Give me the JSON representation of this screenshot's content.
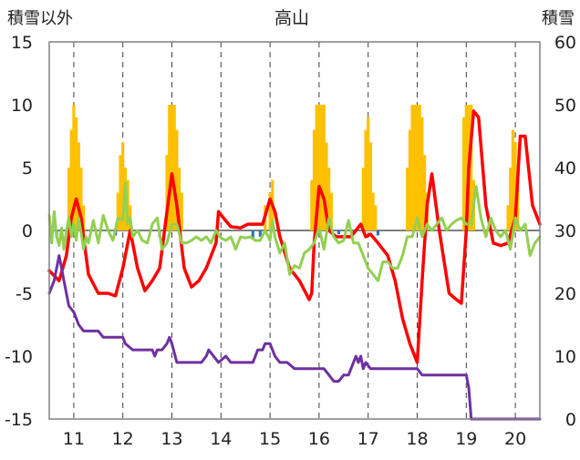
{
  "chart_data": {
    "type": "bar+line",
    "title": "高山",
    "left_axis_label": "積雪以外",
    "right_axis_label": "積雪",
    "left_ylim": [
      -15,
      15
    ],
    "left_ticks": [
      "15",
      "10",
      "5",
      "0",
      "-5",
      "-10",
      "-15"
    ],
    "right_ylim": [
      0,
      60
    ],
    "right_ticks": [
      "60",
      "50",
      "40",
      "30",
      "20",
      "10",
      "0"
    ],
    "xlim": [
      10.5,
      20.5
    ],
    "x_ticks": [
      "11",
      "12",
      "13",
      "14",
      "15",
      "16",
      "17",
      "18",
      "19",
      "20"
    ],
    "grid": "vertical dashed at day boundaries",
    "colors": {
      "snowfall_bars": "#FFC000",
      "precip_bars": "#2E75B6",
      "temperature": "#FF0000",
      "other_green": "#92D050",
      "snow_depth": "#7030A0",
      "zero_line": "#7F7F7F",
      "frame": "#808080",
      "grid": "#404040"
    },
    "series": [
      {
        "kind": "bar",
        "axis": "left",
        "color": "#FFC000",
        "x": [
          10.9,
          10.95,
          11.0,
          11.05,
          11.1,
          11.15,
          11.2,
          11.9,
          11.95,
          12.0,
          12.05,
          12.1,
          12.15,
          12.9,
          12.95,
          13.0,
          13.05,
          13.1,
          13.15,
          13.2,
          14.9,
          15.0,
          15.05,
          15.85,
          15.9,
          15.95,
          16.0,
          16.05,
          16.1,
          16.15,
          16.2,
          16.25,
          16.9,
          16.95,
          17.0,
          17.05,
          17.1,
          17.15,
          17.8,
          17.85,
          17.9,
          17.95,
          18.0,
          18.05,
          18.1,
          18.15,
          18.2,
          18.95,
          19.0,
          19.05,
          19.1,
          19.15,
          19.85,
          19.9,
          19.95,
          20.0,
          20.05
        ],
        "values": [
          5,
          8,
          10,
          9,
          7,
          5,
          2,
          3,
          6,
          7,
          5,
          4,
          2,
          6,
          10,
          10,
          10,
          8,
          5,
          3,
          2,
          3,
          4,
          4,
          8,
          10,
          10,
          10,
          10,
          7,
          5,
          3,
          5,
          8,
          9,
          7,
          3,
          2,
          5,
          8,
          10,
          10,
          10,
          10,
          9,
          6,
          3,
          9,
          10,
          10,
          10,
          4,
          2,
          5,
          8,
          7,
          4
        ]
      },
      {
        "kind": "bar",
        "axis": "left",
        "color": "#2E75B6",
        "x": [
          10.65,
          10.75,
          11.85,
          12.75,
          14.65,
          14.8,
          16.4,
          17.2
        ],
        "values": [
          -0.5,
          -0.6,
          -0.4,
          -0.5,
          -0.7,
          -0.5,
          -0.3,
          -0.4
        ]
      },
      {
        "kind": "line",
        "axis": "left",
        "color": "#FF0000",
        "x": [
          10.5,
          10.7,
          10.85,
          10.95,
          11.05,
          11.15,
          11.3,
          11.5,
          11.7,
          11.85,
          12.0,
          12.15,
          12.3,
          12.45,
          12.6,
          12.75,
          12.9,
          13.0,
          13.1,
          13.25,
          13.4,
          13.55,
          13.7,
          13.9,
          13.95,
          14.05,
          14.2,
          14.4,
          14.55,
          14.7,
          14.85,
          15.0,
          15.1,
          15.2,
          15.4,
          15.6,
          15.8,
          15.85,
          15.9,
          16.0,
          16.1,
          16.2,
          16.35,
          16.5,
          16.65,
          16.85,
          16.95,
          17.05,
          17.2,
          17.4,
          17.55,
          17.7,
          17.85,
          18.0,
          18.1,
          18.2,
          18.3,
          18.45,
          18.65,
          18.8,
          18.9,
          19.0,
          19.05,
          19.15,
          19.25,
          19.4,
          19.55,
          19.7,
          19.85,
          20.0,
          20.1,
          20.2,
          20.35,
          20.5
        ],
        "values": [
          -3.2,
          -4.0,
          -2.0,
          1.0,
          2.5,
          1.0,
          -3.5,
          -5.0,
          -5.0,
          -5.2,
          -3.0,
          0.0,
          -3.0,
          -4.8,
          -4.0,
          -3.0,
          1.5,
          4.5,
          2.0,
          -3.0,
          -4.5,
          -4.0,
          -3.0,
          -1.0,
          1.5,
          1.0,
          0.3,
          0.2,
          0.5,
          0.5,
          0.5,
          2.5,
          1.5,
          -0.5,
          -3.0,
          -4.0,
          -5.5,
          -5.0,
          -1.0,
          3.5,
          2.5,
          0.0,
          -0.5,
          -0.5,
          -0.5,
          0.5,
          -0.5,
          -0.3,
          -1.0,
          -2.0,
          -4.0,
          -7.0,
          -9.0,
          -10.5,
          -4.0,
          2.0,
          4.5,
          0.0,
          -5.0,
          -5.5,
          -5.8,
          0.0,
          5.0,
          9.5,
          9.0,
          2.0,
          -1.0,
          -1.2,
          -1.0,
          1.0,
          7.5,
          7.5,
          2.0,
          0.5
        ]
      },
      {
        "kind": "line",
        "axis": "left",
        "color": "#92D050",
        "x": [
          10.5,
          10.55,
          10.6,
          10.65,
          10.7,
          10.75,
          10.8,
          10.85,
          10.9,
          10.95,
          11.0,
          11.05,
          11.1,
          11.15,
          11.2,
          11.25,
          11.3,
          11.4,
          11.5,
          11.6,
          11.7,
          11.8,
          11.9,
          12.0,
          12.05,
          12.1,
          12.15,
          12.2,
          12.3,
          12.4,
          12.5,
          12.6,
          12.7,
          12.8,
          12.9,
          13.0,
          13.1,
          13.2,
          13.3,
          13.4,
          13.5,
          13.6,
          13.7,
          13.8,
          13.9,
          14.0,
          14.1,
          14.2,
          14.3,
          14.4,
          14.5,
          14.6,
          14.7,
          14.8,
          14.9,
          15.0,
          15.05,
          15.1,
          15.2,
          15.3,
          15.4,
          15.5,
          15.6,
          15.7,
          15.8,
          15.9,
          16.0,
          16.1,
          16.2,
          16.3,
          16.4,
          16.5,
          16.6,
          16.7,
          16.8,
          16.9,
          17.0,
          17.1,
          17.2,
          17.3,
          17.4,
          17.5,
          17.6,
          17.7,
          17.8,
          17.9,
          18.0,
          18.1,
          18.2,
          18.3,
          18.4,
          18.5,
          18.6,
          18.7,
          18.8,
          18.9,
          19.0,
          19.1,
          19.2,
          19.3,
          19.4,
          19.5,
          19.6,
          19.7,
          19.8,
          19.9,
          20.0,
          20.1,
          20.2,
          20.3,
          20.4,
          20.5
        ],
        "values": [
          1.2,
          -1.0,
          1.5,
          -0.5,
          -1.2,
          0.2,
          -1.5,
          0.0,
          1.0,
          -0.5,
          0.5,
          -0.8,
          1.0,
          -0.2,
          -1.5,
          -0.5,
          -1.0,
          0.8,
          -1.0,
          1.2,
          0.0,
          -0.8,
          1.0,
          0.8,
          3.8,
          0.5,
          1.0,
          -0.5,
          0.0,
          -0.8,
          -1.0,
          0.5,
          1.0,
          -1.5,
          -1.0,
          0.5,
          0.5,
          -1.0,
          -1.0,
          -0.8,
          -0.5,
          -0.8,
          -0.5,
          -1.0,
          0.0,
          -0.6,
          -0.8,
          -0.5,
          -1.5,
          -0.5,
          -0.6,
          -0.5,
          -0.8,
          -0.8,
          0.0,
          -0.8,
          0.8,
          -0.5,
          -1.8,
          -1.0,
          -3.5,
          -2.8,
          -3.0,
          -1.8,
          -1.5,
          -1.0,
          0.2,
          -1.5,
          1.0,
          -0.5,
          -1.0,
          -0.8,
          0.8,
          -1.0,
          -1.0,
          -2.0,
          -3.0,
          -3.5,
          -4.0,
          -2.5,
          -2.5,
          -3.0,
          -3.0,
          -2.0,
          -0.5,
          -0.5,
          1.0,
          -0.5,
          0.5,
          0.0,
          0.5,
          1.0,
          0.0,
          0.5,
          0.8,
          1.0,
          0.5,
          0.5,
          3.5,
          1.0,
          -0.5,
          1.0,
          0.0,
          -0.5,
          0.0,
          -1.5,
          1.0,
          0.0,
          0.5,
          -2.0,
          -1.0,
          -0.5
        ]
      },
      {
        "kind": "line",
        "axis": "right",
        "color": "#7030A0",
        "x": [
          10.5,
          10.55,
          10.6,
          10.65,
          10.7,
          10.75,
          10.8,
          10.85,
          10.9,
          11.0,
          11.05,
          11.1,
          11.2,
          11.5,
          11.6,
          11.7,
          12.0,
          12.05,
          12.2,
          12.6,
          12.65,
          12.7,
          12.8,
          12.9,
          12.95,
          13.0,
          13.1,
          13.2,
          13.6,
          13.7,
          13.75,
          13.85,
          13.95,
          14.1,
          14.2,
          14.65,
          14.7,
          14.75,
          14.85,
          14.9,
          14.95,
          15.0,
          15.05,
          15.1,
          15.2,
          15.35,
          15.5,
          16.1,
          16.2,
          16.3,
          16.4,
          16.5,
          16.6,
          16.7,
          16.75,
          16.8,
          16.85,
          16.9,
          16.95,
          17.05,
          17.2,
          18.0,
          18.1,
          18.2,
          19.0,
          19.05,
          19.1,
          20.5
        ],
        "values": [
          20,
          21,
          22,
          24,
          26,
          24,
          22,
          20,
          18,
          17,
          16,
          15,
          14,
          14,
          13,
          13,
          13,
          12,
          11,
          11,
          10,
          11,
          11,
          12,
          13,
          12,
          9,
          9,
          9,
          10,
          11,
          10,
          9,
          10,
          9,
          9,
          10,
          11,
          11,
          12,
          12,
          12,
          11,
          10,
          9,
          9,
          8,
          8,
          7,
          6,
          6,
          7,
          7,
          9,
          10,
          9,
          10,
          8,
          9,
          8,
          8,
          8,
          7,
          7,
          7,
          5,
          0,
          0
        ]
      }
    ]
  }
}
